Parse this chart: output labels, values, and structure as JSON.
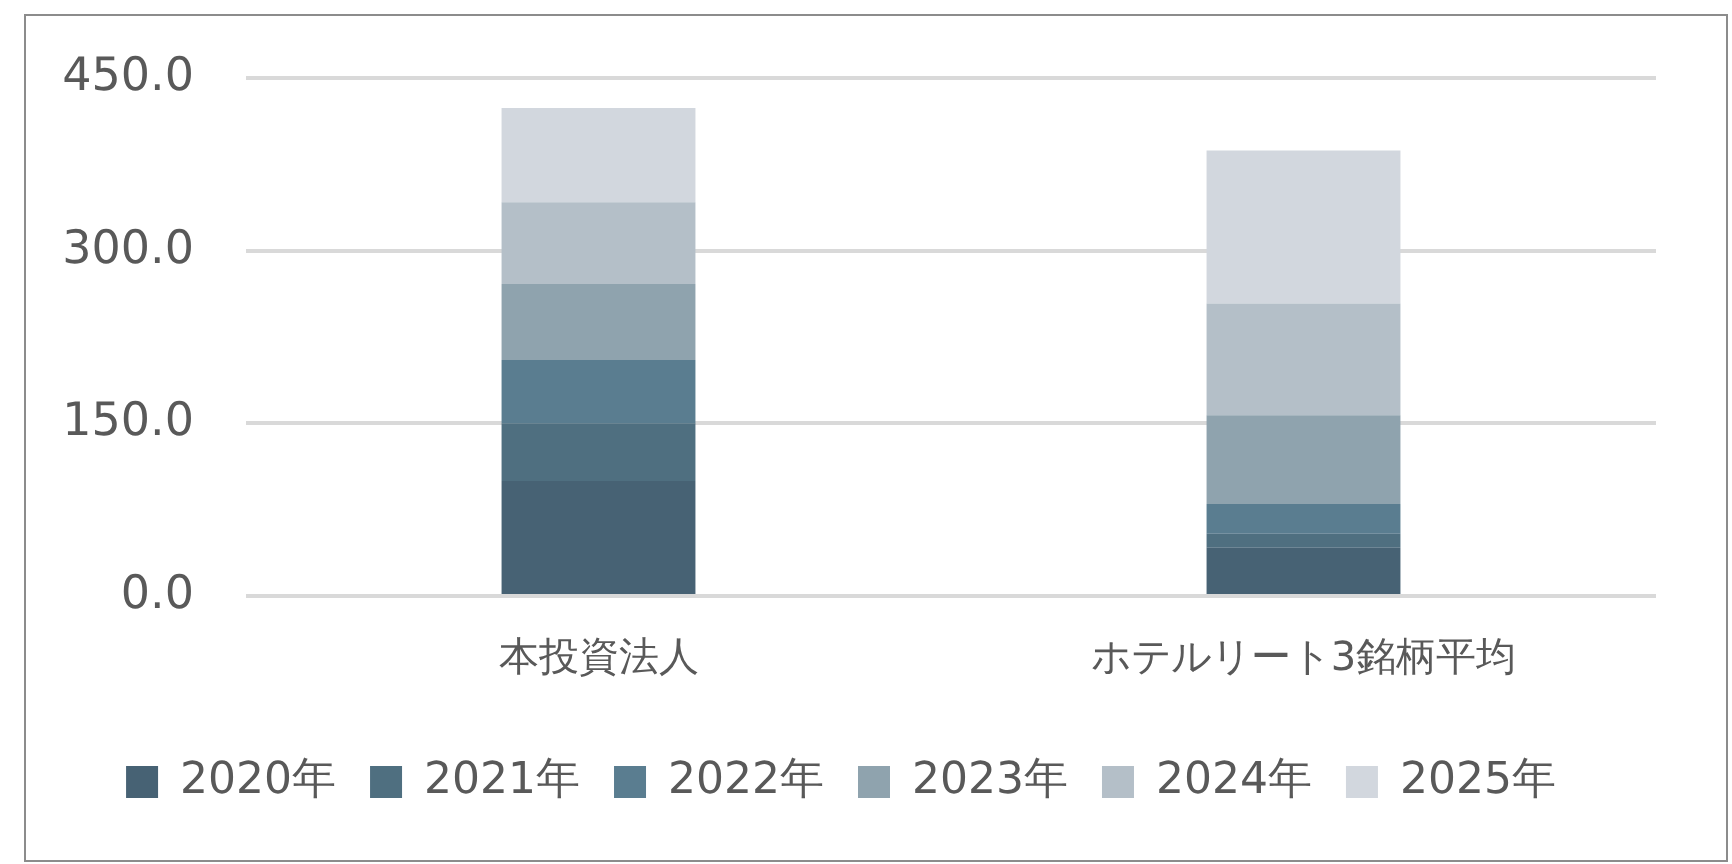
{
  "chart_data": {
    "type": "bar",
    "stacked": true,
    "categories": [
      "本投資法人",
      "ホテルリート3銘柄平均"
    ],
    "series": [
      {
        "name": "2020年",
        "color": "#476274",
        "values": [
          100,
          42
        ]
      },
      {
        "name": "2021年",
        "color": "#4f6f80",
        "values": [
          50,
          12
        ]
      },
      {
        "name": "2022年",
        "color": "#5a7d90",
        "values": [
          55,
          26
        ]
      },
      {
        "name": "2023年",
        "color": "#8fa3ae",
        "values": [
          66,
          77
        ]
      },
      {
        "name": "2024年",
        "color": "#b4bfc8",
        "values": [
          71,
          97
        ]
      },
      {
        "name": "2025年",
        "color": "#d2d7de",
        "values": [
          82,
          133
        ]
      }
    ],
    "ylim": [
      0,
      450
    ],
    "yticks": [
      {
        "value": 0,
        "label": "0.0"
      },
      {
        "value": 150,
        "label": "150.0"
      },
      {
        "value": 300,
        "label": "300.0"
      },
      {
        "value": 450,
        "label": "450.0"
      }
    ],
    "grid": "y",
    "legend": "bottom"
  }
}
